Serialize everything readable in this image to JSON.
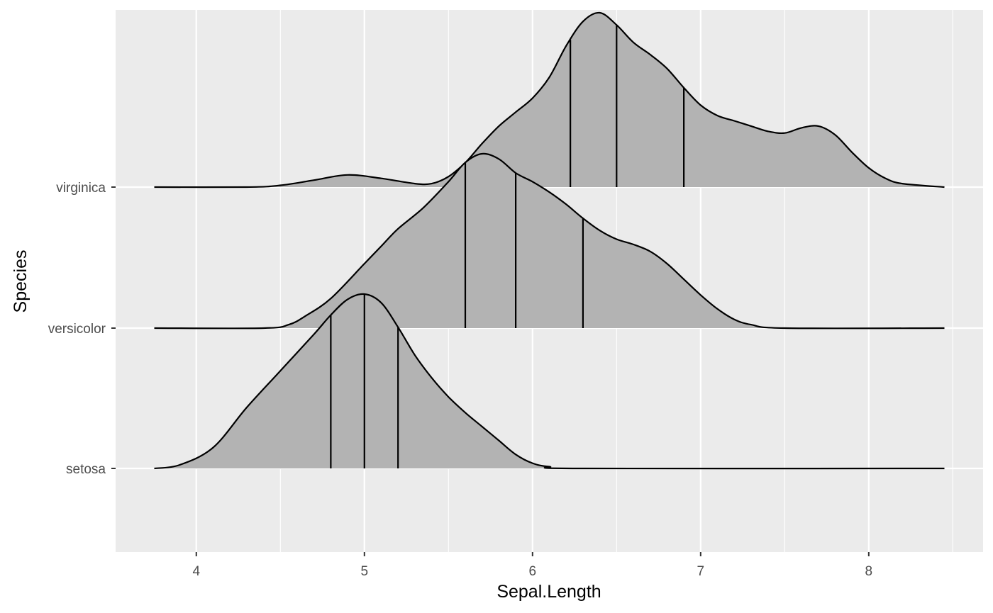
{
  "chart_data": {
    "type": "area",
    "subtype": "ridgeline-density",
    "xlabel": "Sepal.Length",
    "ylabel": "Species",
    "xlim": [
      3.52,
      8.68
    ],
    "x_ticks": [
      4,
      5,
      6,
      7,
      8
    ],
    "x_minor_ticks": [
      3.5,
      4.5,
      5.5,
      6.5,
      7.5,
      8.5
    ],
    "grid": true,
    "background": "#ebebeb",
    "fill_color": "#b3b3b3",
    "line_color": "#000000",
    "x_support": [
      3.75,
      8.45
    ],
    "series": [
      {
        "name": "setosa",
        "quantiles": [
          4.8,
          5.0,
          5.2
        ],
        "density_relative": [
          [
            3.75,
            0.0
          ],
          [
            3.9,
            0.02
          ],
          [
            4.1,
            0.12
          ],
          [
            4.3,
            0.35
          ],
          [
            4.5,
            0.56
          ],
          [
            4.7,
            0.77
          ],
          [
            4.8,
            0.88
          ],
          [
            4.9,
            0.97
          ],
          [
            5.0,
            1.0
          ],
          [
            5.1,
            0.95
          ],
          [
            5.2,
            0.81
          ],
          [
            5.3,
            0.65
          ],
          [
            5.4,
            0.52
          ],
          [
            5.5,
            0.41
          ],
          [
            5.6,
            0.32
          ],
          [
            5.7,
            0.24
          ],
          [
            5.8,
            0.16
          ],
          [
            5.9,
            0.08
          ],
          [
            6.0,
            0.03
          ],
          [
            6.1,
            0.01
          ],
          [
            6.3,
            0.0
          ],
          [
            8.45,
            0.0
          ]
        ]
      },
      {
        "name": "versicolor",
        "quantiles": [
          5.6,
          5.9,
          6.3
        ],
        "density_relative": [
          [
            3.75,
            0.0
          ],
          [
            4.4,
            0.0
          ],
          [
            4.55,
            0.02
          ],
          [
            4.65,
            0.07
          ],
          [
            4.8,
            0.17
          ],
          [
            5.0,
            0.37
          ],
          [
            5.1,
            0.47
          ],
          [
            5.2,
            0.57
          ],
          [
            5.35,
            0.69
          ],
          [
            5.5,
            0.84
          ],
          [
            5.6,
            0.95
          ],
          [
            5.7,
            1.0
          ],
          [
            5.8,
            0.97
          ],
          [
            5.9,
            0.89
          ],
          [
            6.0,
            0.84
          ],
          [
            6.1,
            0.78
          ],
          [
            6.2,
            0.71
          ],
          [
            6.3,
            0.63
          ],
          [
            6.4,
            0.56
          ],
          [
            6.5,
            0.51
          ],
          [
            6.6,
            0.48
          ],
          [
            6.7,
            0.44
          ],
          [
            6.8,
            0.37
          ],
          [
            6.9,
            0.28
          ],
          [
            7.0,
            0.19
          ],
          [
            7.1,
            0.11
          ],
          [
            7.2,
            0.05
          ],
          [
            7.3,
            0.02
          ],
          [
            7.5,
            0.0
          ],
          [
            8.45,
            0.0
          ]
        ]
      },
      {
        "name": "virginica",
        "quantiles": [
          6.225,
          6.5,
          6.9
        ],
        "density_relative": [
          [
            3.75,
            0.0
          ],
          [
            4.3,
            0.0
          ],
          [
            4.5,
            0.01
          ],
          [
            4.7,
            0.04
          ],
          [
            4.9,
            0.07
          ],
          [
            5.1,
            0.05
          ],
          [
            5.3,
            0.02
          ],
          [
            5.4,
            0.02
          ],
          [
            5.5,
            0.06
          ],
          [
            5.6,
            0.14
          ],
          [
            5.7,
            0.25
          ],
          [
            5.8,
            0.35
          ],
          [
            5.9,
            0.43
          ],
          [
            6.0,
            0.51
          ],
          [
            6.1,
            0.63
          ],
          [
            6.2,
            0.81
          ],
          [
            6.3,
            0.95
          ],
          [
            6.4,
            1.0
          ],
          [
            6.5,
            0.93
          ],
          [
            6.6,
            0.83
          ],
          [
            6.7,
            0.76
          ],
          [
            6.8,
            0.68
          ],
          [
            6.9,
            0.57
          ],
          [
            7.0,
            0.47
          ],
          [
            7.1,
            0.41
          ],
          [
            7.2,
            0.38
          ],
          [
            7.3,
            0.35
          ],
          [
            7.4,
            0.32
          ],
          [
            7.5,
            0.31
          ],
          [
            7.6,
            0.34
          ],
          [
            7.7,
            0.35
          ],
          [
            7.8,
            0.3
          ],
          [
            7.9,
            0.2
          ],
          [
            8.0,
            0.11
          ],
          [
            8.1,
            0.05
          ],
          [
            8.2,
            0.02
          ],
          [
            8.45,
            0.0
          ]
        ]
      }
    ]
  }
}
